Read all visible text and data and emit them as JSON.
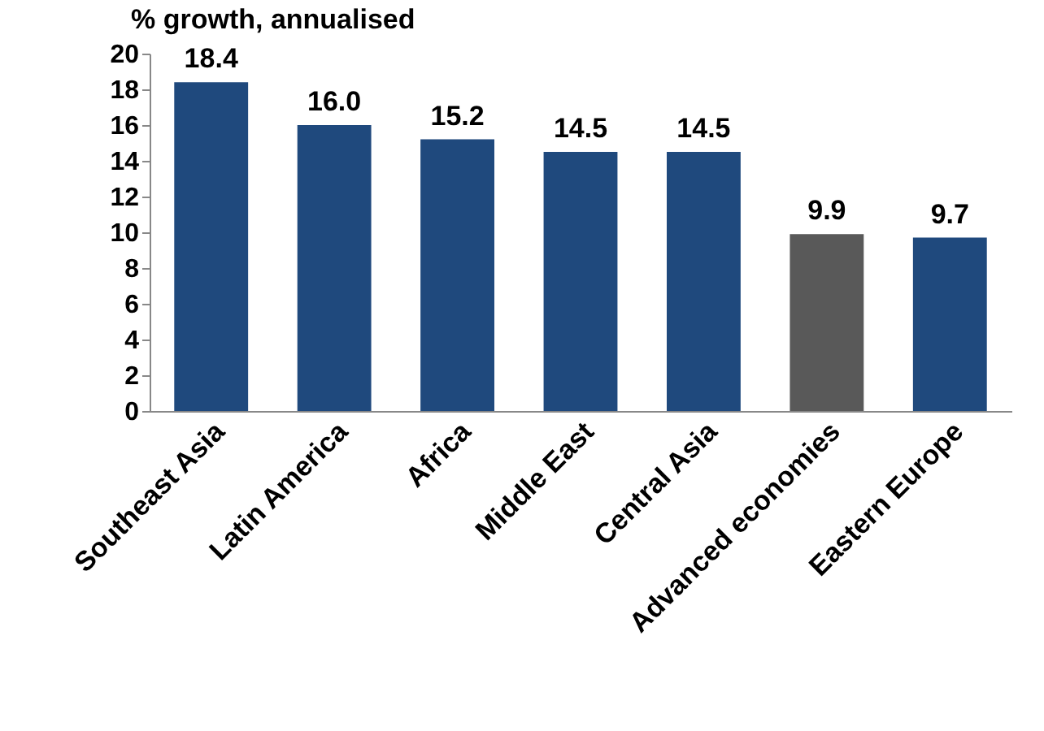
{
  "chart_data": {
    "type": "bar",
    "ylabel": "% growth, annualised",
    "categories": [
      "Southeast Asia",
      "Latin America",
      "Africa",
      "Middle East",
      "Central Asia",
      "Advanced economies",
      "Eastern Europe"
    ],
    "values": [
      18.4,
      16.0,
      15.2,
      14.5,
      14.5,
      9.9,
      9.7
    ],
    "colors": [
      "#1f497d",
      "#1f497d",
      "#1f497d",
      "#1f497d",
      "#1f497d",
      "#595959",
      "#1f497d"
    ],
    "value_labels": [
      "18.4",
      "16.0",
      "15.2",
      "14.5",
      "14.5",
      "9.9",
      "9.7"
    ],
    "ylim": [
      0,
      20
    ],
    "yticks": [
      0,
      2,
      4,
      6,
      8,
      10,
      12,
      14,
      16,
      18,
      20
    ],
    "grid": false
  }
}
